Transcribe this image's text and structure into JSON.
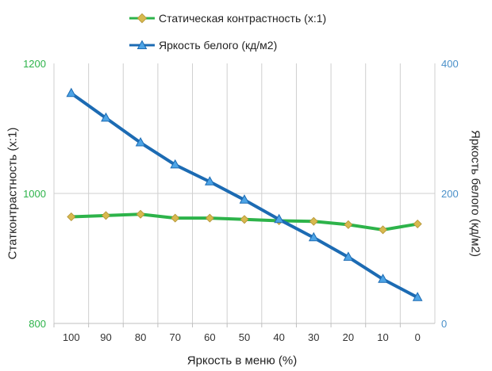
{
  "legend": {
    "contrast_label": "Статическая контрастность  (x:1)",
    "brightness_label": "Яркость белого (кд/м2)"
  },
  "colors": {
    "contrast_line": "#2db34a",
    "contrast_marker": "#d7b94e",
    "brightness_line": "#1c6bb3",
    "brightness_marker": "#4da4e6",
    "left_axis_text": "#2db34a",
    "right_axis_text": "#4a90c9",
    "grid": "#cfcfcf"
  },
  "chart_data": {
    "type": "line",
    "title": "",
    "xlabel": "Яркость в меню (%)",
    "ylabel": "Статконтрастность  (x:1)",
    "y2label": "Яркость белого (кд/м2)",
    "categories": [
      "100",
      "90",
      "80",
      "70",
      "60",
      "50",
      "40",
      "30",
      "20",
      "10",
      "0"
    ],
    "ylim": [
      800,
      1200
    ],
    "yticks": [
      "800",
      "1000",
      "1200"
    ],
    "y2lim": [
      0,
      400
    ],
    "y2ticks": [
      "0",
      "200",
      "400"
    ],
    "grid": "vertical",
    "legend_position": "top",
    "series": [
      {
        "name": "Статическая контрастность  (x:1)",
        "axis": "left",
        "values": [
          964,
          966,
          968,
          962,
          962,
          960,
          958,
          957,
          952,
          944,
          953
        ]
      },
      {
        "name": "Яркость белого (кд/м2)",
        "axis": "right",
        "values": [
          354,
          316,
          278,
          244,
          218,
          190,
          160,
          132,
          102,
          68,
          40
        ]
      }
    ]
  }
}
